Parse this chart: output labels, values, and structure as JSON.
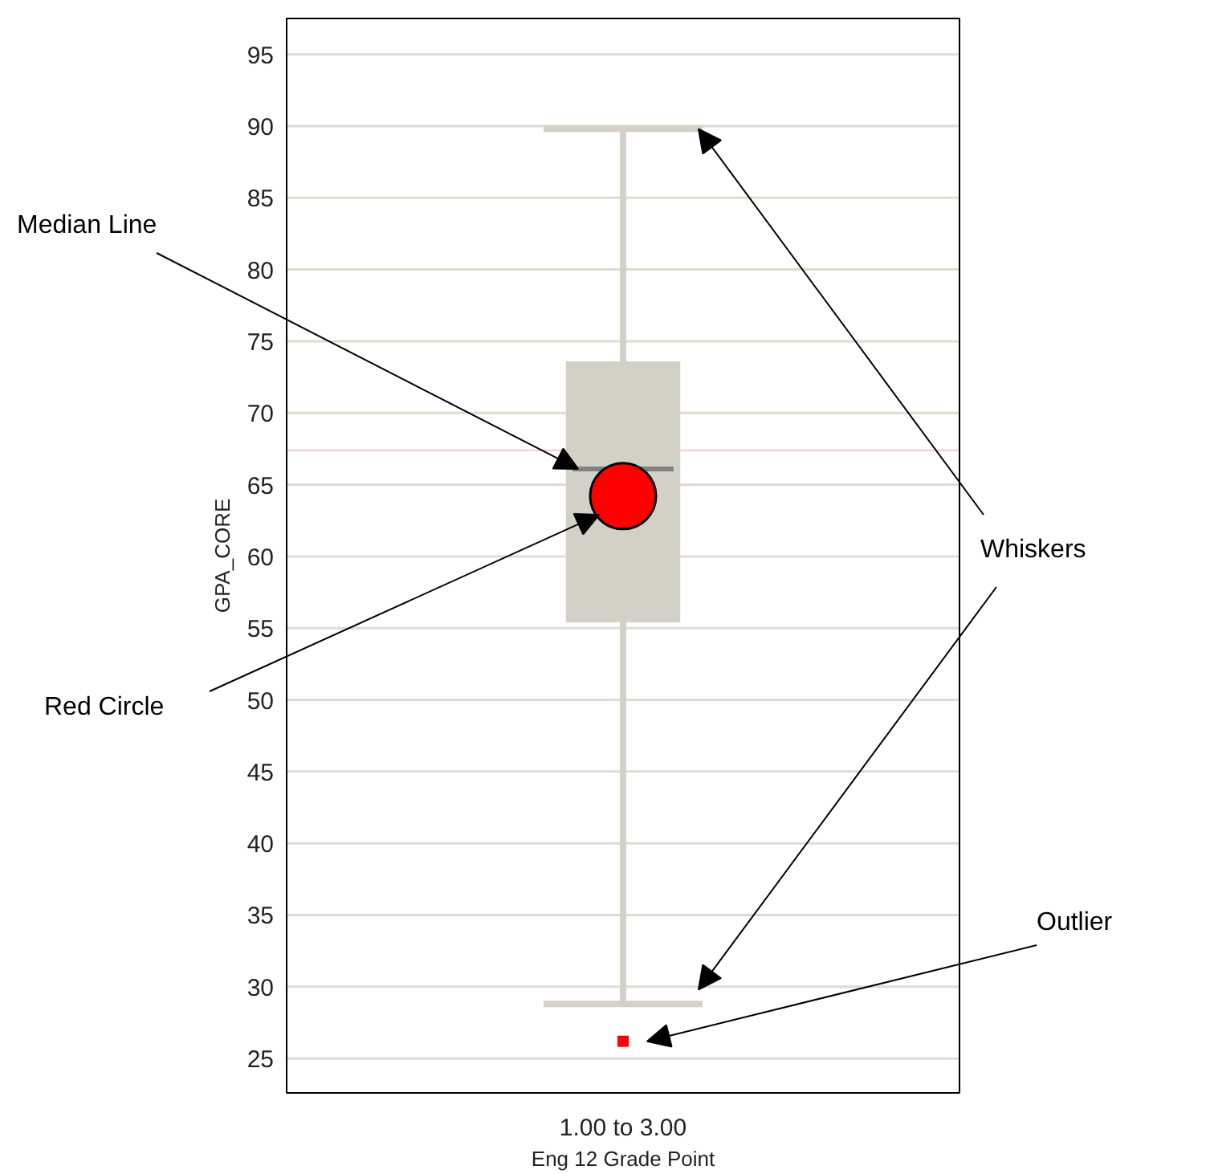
{
  "chart_data": {
    "type": "box",
    "categories": [
      "1.00 to 3.00"
    ],
    "xlabel": "Eng 12 Grade Point",
    "ylabel": "GPA_CORE",
    "ylim": [
      22.6,
      97.5
    ],
    "yticks": [
      25,
      30,
      35,
      40,
      45,
      50,
      55,
      60,
      65,
      70,
      75,
      80,
      85,
      90,
      95
    ],
    "grid": "y",
    "series": [
      {
        "color": "#d3d0c8",
        "boxes": [
          {
            "low": 28.8,
            "q1": 55.4,
            "median": 66.1,
            "q3": 73.6,
            "high": 89.8,
            "mean": 64.2,
            "outliers": [
              26.2
            ]
          }
        ]
      }
    ],
    "ref_lines": [
      {
        "axis": "y",
        "value": 67.4,
        "color": "#ffc8c8"
      }
    ],
    "annotations": [
      "Median Line",
      "Red Circle",
      "Whiskers",
      "Outlier"
    ]
  }
}
